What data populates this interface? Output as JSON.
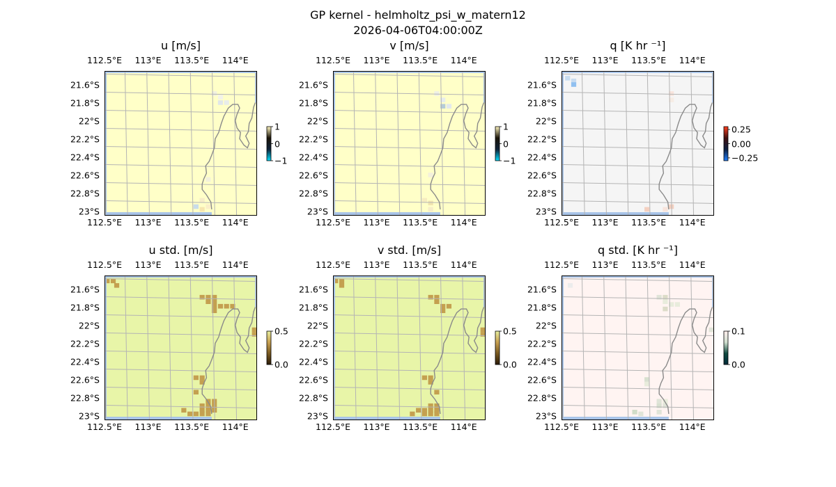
{
  "figure": {
    "title_line1": "GP kernel - helmholtz_psi_w_matern12",
    "title_line2": "2026-04-06T04:00:00Z"
  },
  "colors": {
    "ocean": "#a8c4e8",
    "coast": "#8a8a8a",
    "grid": "#b4b4b4",
    "frame": "#000000"
  },
  "chart_data": [
    {
      "type": "heatmap",
      "title": "u [m/s]",
      "xticks": [
        "112.5°E",
        "113°E",
        "113.5°E",
        "114°E"
      ],
      "yticks": [
        "21.6°S",
        "21.8°S",
        "22°S",
        "22.2°S",
        "22.4°S",
        "22.6°S",
        "22.8°S",
        "23°S"
      ],
      "lon_range": [
        112.5,
        114.25
      ],
      "lat_range": [
        -23.05,
        -21.45
      ],
      "colorbar": {
        "ticks": [
          "1",
          "0",
          "−1"
        ],
        "range": [
          -1,
          1
        ],
        "colors": [
          "#00e0ff",
          "#0f2238",
          "#1a1408",
          "#fff6c0"
        ]
      },
      "background": "#ffffc8",
      "cells": [
        {
          "lon": 113.76,
          "lat": -21.7,
          "color": "#f0f0e0"
        },
        {
          "lon": 113.83,
          "lat": -21.74,
          "color": "#f3f3e8"
        },
        {
          "lon": 113.83,
          "lat": -21.8,
          "color": "#e0e6ea"
        },
        {
          "lon": 113.9,
          "lat": -21.8,
          "color": "#e8ecea"
        },
        {
          "lon": 113.69,
          "lat": -22.65,
          "color": "#f2f0dc"
        },
        {
          "lon": 113.62,
          "lat": -22.88,
          "color": "#f6ecc8"
        },
        {
          "lon": 113.55,
          "lat": -22.95,
          "color": "#c8dcea"
        },
        {
          "lon": 113.62,
          "lat": -22.98,
          "color": "#f6e6b0"
        },
        {
          "lon": 113.69,
          "lat": -22.95,
          "color": "#faeec8"
        }
      ]
    },
    {
      "type": "heatmap",
      "title": "v [m/s]",
      "xticks": [
        "112.5°E",
        "113°E",
        "113.5°E",
        "114°E"
      ],
      "yticks": [
        "21.6°S",
        "21.8°S",
        "22°S",
        "22.2°S",
        "22.4°S",
        "22.6°S",
        "22.8°S",
        "23°S"
      ],
      "lon_range": [
        112.5,
        114.25
      ],
      "lat_range": [
        -23.05,
        -21.45
      ],
      "colorbar": {
        "ticks": [
          "1",
          "0",
          "−1"
        ],
        "range": [
          -1,
          1
        ],
        "colors": [
          "#00e0ff",
          "#0f2238",
          "#1a1408",
          "#fff6c0"
        ]
      },
      "background": "#ffffc8",
      "cells": [
        {
          "lon": 113.69,
          "lat": -21.7,
          "color": "#eef0e6"
        },
        {
          "lon": 113.76,
          "lat": -21.77,
          "color": "#e6ecec"
        },
        {
          "lon": 113.76,
          "lat": -21.84,
          "color": "#b6ccd8"
        },
        {
          "lon": 113.83,
          "lat": -21.84,
          "color": "#e2e8ec"
        },
        {
          "lon": 113.62,
          "lat": -22.6,
          "color": "#f4f0dc"
        },
        {
          "lon": 113.55,
          "lat": -22.88,
          "color": "#f6ecc0"
        },
        {
          "lon": 113.62,
          "lat": -22.91,
          "color": "#f0e4b0"
        },
        {
          "lon": 113.62,
          "lat": -22.98,
          "color": "#f6ecc8"
        }
      ]
    },
    {
      "type": "heatmap",
      "title": "q [K hr ⁻¹]",
      "xticks": [
        "112.5°E",
        "113°E",
        "113.5°E",
        "114°E"
      ],
      "yticks": [
        "21.6°S",
        "21.8°S",
        "22°S",
        "22.2°S",
        "22.4°S",
        "22.6°S",
        "22.8°S",
        "23°S"
      ],
      "lon_range": [
        112.5,
        114.25
      ],
      "lat_range": [
        -23.05,
        -21.45
      ],
      "colorbar": {
        "ticks": [
          "0.25",
          "0.00",
          "−0.25"
        ],
        "range": [
          -0.3,
          0.3
        ],
        "colors": [
          "#2080ff",
          "#0c1e40",
          "#401010",
          "#ff4020"
        ]
      },
      "background": "#f5f5f5",
      "cells": [
        {
          "lon": 112.57,
          "lat": -21.53,
          "color": "#c8dcf0"
        },
        {
          "lon": 112.64,
          "lat": -21.56,
          "color": "#c8dcf0"
        },
        {
          "lon": 112.64,
          "lat": -21.6,
          "color": "#90c0f0"
        },
        {
          "lon": 113.76,
          "lat": -21.7,
          "color": "#f8e4dc"
        },
        {
          "lon": 113.76,
          "lat": -21.77,
          "color": "#f6ece4"
        },
        {
          "lon": 113.69,
          "lat": -22.98,
          "color": "#f8e4dc"
        },
        {
          "lon": 113.76,
          "lat": -22.95,
          "color": "#f4d0c0"
        },
        {
          "lon": 113.48,
          "lat": -22.98,
          "color": "#f4d0c0"
        }
      ]
    },
    {
      "type": "heatmap",
      "title": "u std. [m/s]",
      "xticks": [
        "112.5°E",
        "113°E",
        "113.5°E",
        "114°E"
      ],
      "yticks": [
        "21.6°S",
        "21.8°S",
        "22°S",
        "22.2°S",
        "22.4°S",
        "22.6°S",
        "22.8°S",
        "23°S"
      ],
      "lon_range": [
        112.5,
        114.25
      ],
      "lat_range": [
        -23.05,
        -21.45
      ],
      "colorbar": {
        "ticks": [
          "0.5",
          "0.0"
        ],
        "range": [
          0,
          0.5
        ],
        "colors": [
          "#2a1a08",
          "#7a5a20",
          "#c8a050",
          "#e8f0a0"
        ]
      },
      "background": "#e8f5a8",
      "cells": [
        {
          "lon": 112.53,
          "lat": -21.51,
          "color": "#c4a050"
        },
        {
          "lon": 112.6,
          "lat": -21.51,
          "color": "#c4a050"
        },
        {
          "lon": 112.64,
          "lat": -21.56,
          "color": "#c4a050"
        },
        {
          "lon": 113.62,
          "lat": -21.69,
          "color": "#c4a050"
        },
        {
          "lon": 113.69,
          "lat": -21.69,
          "color": "#c4a050"
        },
        {
          "lon": 113.76,
          "lat": -21.69,
          "color": "#c4a050"
        },
        {
          "lon": 113.69,
          "lat": -21.74,
          "color": "#c4a050"
        },
        {
          "lon": 113.76,
          "lat": -21.74,
          "color": "#c4a050"
        },
        {
          "lon": 113.76,
          "lat": -21.79,
          "color": "#c4a050"
        },
        {
          "lon": 113.83,
          "lat": -21.79,
          "color": "#c4a050"
        },
        {
          "lon": 113.9,
          "lat": -21.79,
          "color": "#c4a050"
        },
        {
          "lon": 113.97,
          "lat": -21.79,
          "color": "#c4a050"
        },
        {
          "lon": 113.76,
          "lat": -21.84,
          "color": "#c4a050"
        },
        {
          "lon": 114.22,
          "lat": -22.05,
          "color": "#c4a050"
        },
        {
          "lon": 114.22,
          "lat": -22.1,
          "color": "#c4a050"
        },
        {
          "lon": 113.55,
          "lat": -22.58,
          "color": "#c4a050"
        },
        {
          "lon": 113.62,
          "lat": -22.58,
          "color": "#c4a050"
        },
        {
          "lon": 113.62,
          "lat": -22.63,
          "color": "#c4a050"
        },
        {
          "lon": 113.55,
          "lat": -22.74,
          "color": "#c4a050"
        },
        {
          "lon": 113.69,
          "lat": -22.84,
          "color": "#c4a050"
        },
        {
          "lon": 113.76,
          "lat": -22.84,
          "color": "#c4a050"
        },
        {
          "lon": 113.62,
          "lat": -22.89,
          "color": "#c4a050"
        },
        {
          "lon": 113.69,
          "lat": -22.89,
          "color": "#c4a050"
        },
        {
          "lon": 113.76,
          "lat": -22.89,
          "color": "#c4a050"
        },
        {
          "lon": 113.41,
          "lat": -22.94,
          "color": "#c4a050"
        },
        {
          "lon": 113.62,
          "lat": -22.94,
          "color": "#c4a050"
        },
        {
          "lon": 113.69,
          "lat": -22.94,
          "color": "#c4a050"
        },
        {
          "lon": 113.76,
          "lat": -22.94,
          "color": "#c4a050"
        },
        {
          "lon": 113.48,
          "lat": -22.98,
          "color": "#c4a050"
        },
        {
          "lon": 113.55,
          "lat": -22.98,
          "color": "#c4a050"
        },
        {
          "lon": 113.62,
          "lat": -22.98,
          "color": "#c4a050"
        },
        {
          "lon": 113.69,
          "lat": -22.98,
          "color": "#c4a050"
        }
      ]
    },
    {
      "type": "heatmap",
      "title": "v std. [m/s]",
      "xticks": [
        "112.5°E",
        "113°E",
        "113.5°E",
        "114°E"
      ],
      "yticks": [
        "21.6°S",
        "21.8°S",
        "22°S",
        "22.2°S",
        "22.4°S",
        "22.6°S",
        "22.8°S",
        "23°S"
      ],
      "lon_range": [
        112.5,
        114.25
      ],
      "lat_range": [
        -23.05,
        -21.45
      ],
      "colorbar": {
        "ticks": [
          "0.5",
          "0.0"
        ],
        "range": [
          0,
          0.5
        ],
        "colors": [
          "#2a1a08",
          "#7a5a20",
          "#c8a050",
          "#e8f0a0"
        ]
      },
      "background": "#e8f5a8",
      "cells": [
        {
          "lon": 112.53,
          "lat": -21.51,
          "color": "#c4a050"
        },
        {
          "lon": 112.6,
          "lat": -21.51,
          "color": "#c4a050"
        },
        {
          "lon": 112.6,
          "lat": -21.56,
          "color": "#c4a050"
        },
        {
          "lon": 113.62,
          "lat": -21.69,
          "color": "#c4a050"
        },
        {
          "lon": 113.69,
          "lat": -21.69,
          "color": "#c4a050"
        },
        {
          "lon": 113.69,
          "lat": -21.74,
          "color": "#c4a050"
        },
        {
          "lon": 113.76,
          "lat": -21.79,
          "color": "#c4a050"
        },
        {
          "lon": 113.83,
          "lat": -21.79,
          "color": "#c4a050"
        },
        {
          "lon": 113.76,
          "lat": -21.84,
          "color": "#c4a050"
        },
        {
          "lon": 114.22,
          "lat": -22.05,
          "color": "#c4a050"
        },
        {
          "lon": 114.22,
          "lat": -22.1,
          "color": "#c4a050"
        },
        {
          "lon": 113.55,
          "lat": -22.58,
          "color": "#c4a050"
        },
        {
          "lon": 113.62,
          "lat": -22.58,
          "color": "#c4a050"
        },
        {
          "lon": 113.62,
          "lat": -22.63,
          "color": "#c4a050"
        },
        {
          "lon": 113.69,
          "lat": -22.74,
          "color": "#c4a050"
        },
        {
          "lon": 113.62,
          "lat": -22.89,
          "color": "#c4a050"
        },
        {
          "lon": 113.69,
          "lat": -22.89,
          "color": "#c4a050"
        },
        {
          "lon": 113.48,
          "lat": -22.94,
          "color": "#c4a050"
        },
        {
          "lon": 113.55,
          "lat": -22.94,
          "color": "#c4a050"
        },
        {
          "lon": 113.62,
          "lat": -22.94,
          "color": "#c4a050"
        },
        {
          "lon": 113.69,
          "lat": -22.94,
          "color": "#c4a050"
        },
        {
          "lon": 113.41,
          "lat": -22.98,
          "color": "#c4a050"
        },
        {
          "lon": 113.55,
          "lat": -22.98,
          "color": "#c4a050"
        },
        {
          "lon": 113.62,
          "lat": -22.98,
          "color": "#c4a050"
        },
        {
          "lon": 113.69,
          "lat": -22.98,
          "color": "#c4a050"
        }
      ]
    },
    {
      "type": "heatmap",
      "title": "q std. [K hr ⁻¹]",
      "xticks": [
        "112.5°E",
        "113°E",
        "113.5°E",
        "114°E"
      ],
      "yticks": [
        "21.6°S",
        "21.8°S",
        "22°S",
        "22.2°S",
        "22.4°S",
        "22.6°S",
        "22.8°S",
        "23°S"
      ],
      "lon_range": [
        112.5,
        114.25
      ],
      "lat_range": [
        -23.05,
        -21.45
      ],
      "colorbar": {
        "ticks": [
          "0.1",
          "0.0"
        ],
        "range": [
          0,
          0.1
        ],
        "colors": [
          "#002a3a",
          "#104a40",
          "#d0e0d0",
          "#fff0ee"
        ]
      },
      "background": "#fff4f2",
      "cells": [
        {
          "lon": 112.6,
          "lat": -21.56,
          "color": "#ececec"
        },
        {
          "lon": 113.62,
          "lat": -21.69,
          "color": "#e0e4d8"
        },
        {
          "lon": 113.69,
          "lat": -21.69,
          "color": "#dcdcc8"
        },
        {
          "lon": 113.69,
          "lat": -21.74,
          "color": "#e8ecdc"
        },
        {
          "lon": 113.76,
          "lat": -21.77,
          "color": "#e8ecdc"
        },
        {
          "lon": 113.83,
          "lat": -21.77,
          "color": "#e8ecdc"
        },
        {
          "lon": 113.69,
          "lat": -21.82,
          "color": "#dcdcc8"
        },
        {
          "lon": 114.22,
          "lat": -22.05,
          "color": "#e0e4d8"
        },
        {
          "lon": 113.48,
          "lat": -22.6,
          "color": "#d8e0d0"
        },
        {
          "lon": 113.48,
          "lat": -22.65,
          "color": "#e8ecdc"
        },
        {
          "lon": 113.62,
          "lat": -22.84,
          "color": "#e0e4d8"
        },
        {
          "lon": 113.69,
          "lat": -22.84,
          "color": "#e8ecdc"
        },
        {
          "lon": 113.62,
          "lat": -22.89,
          "color": "#d8e0d0"
        },
        {
          "lon": 113.69,
          "lat": -22.89,
          "color": "#e0e4d8"
        },
        {
          "lon": 113.34,
          "lat": -22.96,
          "color": "#d0dcc8"
        },
        {
          "lon": 113.41,
          "lat": -22.98,
          "color": "#e0e4d8"
        },
        {
          "lon": 113.62,
          "lat": -22.96,
          "color": "#e0e4d8"
        }
      ]
    }
  ]
}
